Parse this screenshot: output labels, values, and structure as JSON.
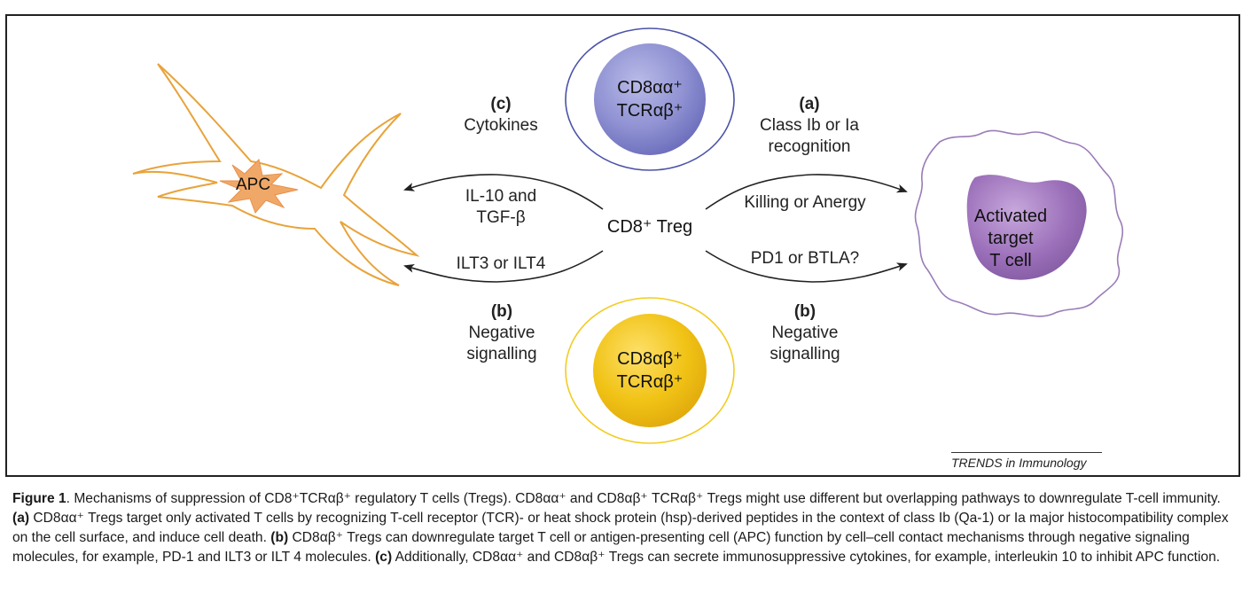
{
  "nodes": {
    "apc": "APC",
    "treg_aa": {
      "line1": "CD8αα⁺",
      "line2": "TCRαβ⁺"
    },
    "treg_ab": {
      "line1": "CD8αβ⁺",
      "line2": "TCRαβ⁺"
    },
    "center": "CD8⁺ Treg",
    "target": {
      "line1": "Activated",
      "line2": "target",
      "line3": "T cell"
    }
  },
  "labels": {
    "c_letter": "(c)",
    "c_text": "Cytokines",
    "a_letter": "(a)",
    "a_line1": "Class Ib or Ia",
    "a_line2": "recognition",
    "il10_line1": "IL-10 and",
    "il10_line2": "TGF-β",
    "ilt": "ILT3 or ILT4",
    "killing": "Killing or Anergy",
    "pd1": "PD1 or BTLA?",
    "b_left_letter": "(b)",
    "b_left_line1": "Negative",
    "b_left_line2": "signalling",
    "b_right_letter": "(b)",
    "b_right_line1": "Negative",
    "b_right_line2": "signalling"
  },
  "credit": "TRENDS in Immunology",
  "caption": {
    "figure_label": "Figure 1",
    "p1": ". Mechanisms of suppression of CD8⁺TCRαβ⁺ regulatory T cells (Tregs). CD8αα⁺ and CD8αβ⁺ TCRαβ⁺ Tregs might use different but overlapping pathways to downregulate T-cell immunity. ",
    "a_label": "(a)",
    "p2": " CD8αα⁺ Tregs target only activated T cells by recognizing T-cell receptor (TCR)- or heat shock protein (hsp)-derived peptides in the context of class Ib (Qa-1) or Ia major histocompatibility complex on the cell surface, and induce cell death. ",
    "b_label": "(b)",
    "p3": " CD8αβ⁺ Tregs can downregulate target T cell or antigen-presenting cell (APC) function by cell–cell contact mechanisms through negative signaling molecules, for example, PD-1 and ILT3 or ILT 4 molecules. ",
    "c_label": "(c)",
    "p4": " Additionally, CD8αα⁺ and CD8αβ⁺ Tregs can secrete immunosuppressive cytokines, for example, interleukin 10 to inhibit APC function."
  },
  "colors": {
    "apc_outline": "#e8a33a",
    "apc_nucleus": "#f0a868",
    "treg_aa_ring": "#4a52a8",
    "treg_aa_fill": "#8e90d2",
    "treg_ab_ring": "#f2cc22",
    "treg_ab_fill": "#f1c316",
    "target_outline": "#9a7cb8",
    "target_nucleus": "#9b6fb9"
  }
}
